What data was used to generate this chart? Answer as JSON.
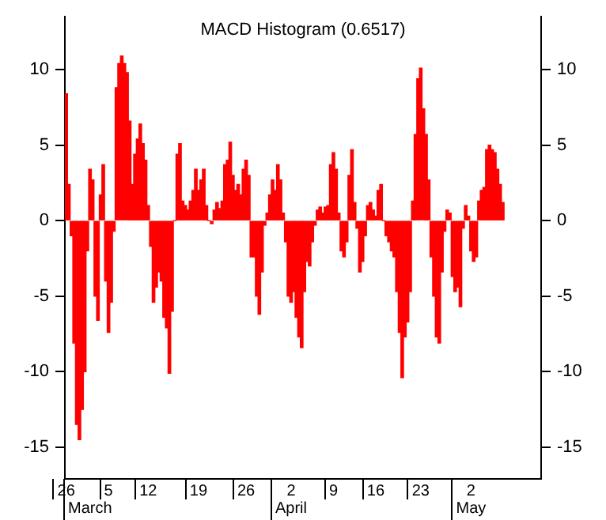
{
  "chart_data": {
    "type": "bar",
    "title": "MACD Histogram (0.6517)",
    "color": "#ff0000",
    "categories": [
      "26",
      null,
      null,
      null,
      null,
      null,
      null,
      null,
      null,
      "\nMarch",
      null,
      null,
      null,
      null,
      null,
      null,
      "5",
      null,
      null,
      null,
      null,
      null,
      null,
      null,
      null,
      null,
      null,
      null,
      null,
      null,
      null,
      "12",
      null,
      null,
      null,
      null,
      null,
      null,
      null,
      null,
      null,
      null,
      null,
      null,
      null,
      null,
      null,
      null,
      null,
      null,
      "19",
      null,
      null,
      null,
      null,
      null,
      null,
      null,
      null,
      null,
      null,
      null,
      null,
      null,
      null,
      null,
      null,
      null,
      "26",
      null,
      null,
      null,
      null,
      null,
      null,
      null,
      null,
      null,
      null,
      null,
      null,
      null,
      null,
      null,
      null,
      "2\nApril",
      null,
      null,
      null,
      null,
      null,
      null,
      null,
      null,
      null,
      null,
      null,
      null,
      null,
      null,
      null,
      "9",
      null,
      null,
      null,
      null,
      null,
      null,
      null,
      null,
      null,
      null,
      null,
      null,
      null,
      null,
      null,
      "16",
      null,
      null,
      null,
      null,
      null,
      null,
      null,
      null,
      null,
      null,
      null,
      null,
      null,
      null,
      null,
      null,
      "23",
      null,
      null,
      null,
      null,
      null,
      null,
      null,
      null,
      null,
      null,
      null,
      null,
      null,
      null,
      null,
      null,
      null,
      null,
      "2\nMay",
      null,
      null,
      null,
      null,
      null,
      null,
      null,
      null,
      null,
      null,
      null,
      null,
      null,
      null,
      null,
      null,
      null,
      null,
      null,
      null,
      null,
      null,
      null,
      null,
      null,
      null
    ],
    "values": [
      8.4,
      2.4,
      -1.0,
      -8.1,
      -13.5,
      -14.5,
      -12.5,
      -10,
      -2,
      3.4,
      2.7,
      -5,
      -6.6,
      1.7,
      3.7,
      -4,
      -7.4,
      -5.4,
      -0.7,
      8.8,
      10.4,
      10.9,
      10.4,
      9.8,
      6.6,
      2.4,
      4.4,
      5.4,
      6.4,
      5.1,
      4,
      1.0,
      -1.7,
      -5.4,
      -4.4,
      -3.4,
      -4,
      -6.4,
      -7.1,
      -10.1,
      -6,
      0,
      4.4,
      5.1,
      1.3,
      1.0,
      0.7,
      1.3,
      2,
      3.4,
      2,
      2.7,
      3.4,
      1.0,
      0,
      -0.2,
      0.7,
      1.2,
      0.8,
      1.3,
      3.7,
      4,
      5.2,
      3,
      2,
      2.4,
      1.7,
      3.4,
      4.0,
      3.0,
      -2.4,
      -2.4,
      -5.0,
      -6.2,
      -3.4,
      -0.3,
      0.5,
      1.7,
      2.7,
      2.0,
      3.7,
      2.7,
      0.5,
      -1.4,
      -5.0,
      -5.4,
      -4.7,
      -6.4,
      -7.7,
      -8.4,
      -4.7,
      -2.7,
      -3.0,
      -1.4,
      -0.3,
      0.7,
      0.9,
      0.5,
      0.9,
      1.0,
      3.7,
      4.5,
      3.4,
      0.5,
      -2.0,
      -2.4,
      -1.4,
      3.0,
      4.7,
      1.2,
      -0.5,
      -3.4,
      -2.7,
      -1.0,
      1.0,
      1.2,
      0.7,
      0.3,
      2.0,
      2.4,
      0,
      -1.0,
      -1.4,
      -2.0,
      -2.4,
      -4.7,
      -7.4,
      -10.4,
      -7.7,
      -6.7,
      -4.7,
      1.3,
      5.7,
      9.4,
      10.1,
      7.4,
      5.7,
      2.7,
      -2.4,
      -5.0,
      -7.7,
      -8.1,
      -3.4,
      -0.7,
      0.7,
      0.5,
      -3.7,
      -4.7,
      -4.4,
      -5.7,
      -0.5,
      1.0,
      0.3,
      -2.0,
      -2.7,
      -2.4,
      1.3,
      2.0,
      2.2,
      4.7,
      5.0,
      4.7,
      4.5,
      3.4,
      2.4,
      1.2,
      null,
      null,
      null,
      null,
      null,
      null,
      null,
      null,
      null,
      null,
      null,
      null,
      null,
      null
    ],
    "ylim": [
      -17.1,
      13.5
    ],
    "yticks": [
      10,
      5,
      0,
      -5,
      -10,
      -15
    ],
    "y2lim": [
      -17.1,
      13.5
    ],
    "y2ticks": [
      10,
      5,
      0,
      -5,
      -10,
      -15
    ],
    "grid": false,
    "legend": false
  }
}
